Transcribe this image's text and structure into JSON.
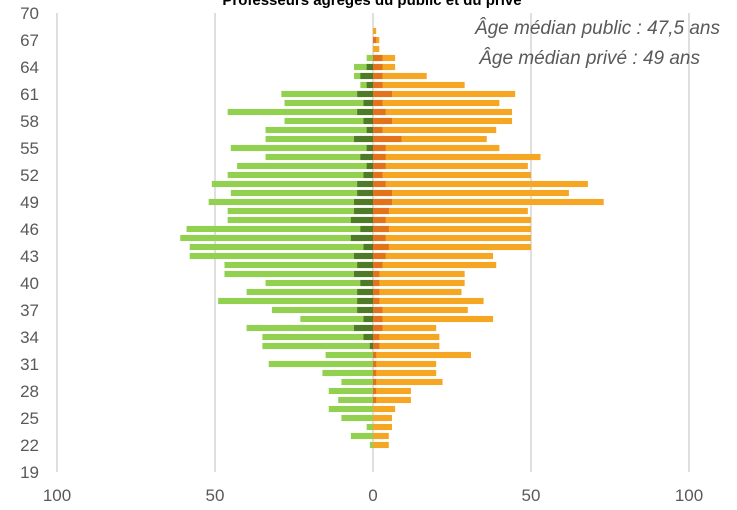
{
  "chart_data": {
    "type": "bar",
    "orientation": "horizontal",
    "style": "population-pyramid",
    "title": "Professeurs agrégés du public et du privé",
    "annotations": [
      "Âge médian public : 47,5 ans",
      "Âge médian privé :  49 ans"
    ],
    "x_ticks": [
      {
        "v": -100,
        "label": "100"
      },
      {
        "v": -50,
        "label": "50"
      },
      {
        "v": 0,
        "label": "0"
      },
      {
        "v": 50,
        "label": "50"
      },
      {
        "v": 100,
        "label": "100"
      }
    ],
    "y_ticks": [
      19,
      22,
      25,
      28,
      31,
      34,
      37,
      40,
      43,
      46,
      49,
      52,
      55,
      58,
      61,
      64,
      67,
      70
    ],
    "xlim": [
      -100,
      100
    ],
    "ylim": [
      19,
      70
    ],
    "grid": "vertical",
    "ages": [
      22,
      23,
      24,
      25,
      26,
      27,
      28,
      29,
      30,
      31,
      32,
      33,
      34,
      35,
      36,
      37,
      38,
      39,
      40,
      41,
      42,
      43,
      44,
      45,
      46,
      47,
      48,
      49,
      50,
      51,
      52,
      53,
      54,
      55,
      56,
      57,
      58,
      59,
      60,
      61,
      62,
      63,
      64,
      65,
      66,
      67,
      68
    ],
    "colors": {
      "left_light": "#92d050",
      "left_dark": "#4f7a28",
      "right_light": "#f5a623",
      "right_dark": "#e2731c",
      "axis": "#bfbfbf"
    },
    "series": [
      {
        "side": "left",
        "values": [
          1,
          7,
          2,
          10,
          14,
          11,
          14,
          10,
          16,
          33,
          15,
          35,
          35,
          40,
          23,
          32,
          49,
          40,
          34,
          47,
          47,
          58,
          58,
          61,
          59,
          46,
          46,
          52,
          45,
          51,
          46,
          43,
          34,
          45,
          34,
          34,
          28,
          46,
          28,
          29,
          4,
          6,
          6,
          2,
          0,
          0,
          0
        ]
      },
      {
        "side": "left",
        "values": [
          0,
          0,
          0,
          0,
          0,
          0,
          0,
          0,
          0,
          0,
          0,
          1,
          3,
          6,
          3,
          5,
          5,
          5,
          4,
          6,
          5,
          6,
          3,
          7,
          4,
          7,
          6,
          6,
          5,
          5,
          3,
          2,
          4,
          2,
          6,
          2,
          3,
          5,
          3,
          5,
          2,
          4,
          2,
          0,
          0,
          0,
          0
        ]
      },
      {
        "side": "right",
        "values": [
          5,
          5,
          6,
          6,
          7,
          12,
          12,
          22,
          20,
          20,
          31,
          21,
          21,
          20,
          38,
          30,
          35,
          28,
          29,
          29,
          39,
          38,
          50,
          50,
          50,
          50,
          49,
          73,
          62,
          68,
          50,
          49,
          53,
          40,
          36,
          39,
          44,
          44,
          40,
          45,
          29,
          17,
          7,
          7,
          2,
          2,
          1
        ]
      },
      {
        "side": "right",
        "values": [
          0,
          0,
          0,
          0,
          0,
          1,
          1,
          1,
          1,
          1,
          1,
          2,
          2,
          3,
          3,
          3,
          2,
          2,
          2,
          2,
          3,
          4,
          5,
          4,
          5,
          4,
          5,
          6,
          6,
          4,
          3,
          4,
          4,
          4,
          9,
          3,
          6,
          4,
          3,
          6,
          3,
          3,
          3,
          3,
          0,
          1,
          0
        ]
      }
    ]
  }
}
